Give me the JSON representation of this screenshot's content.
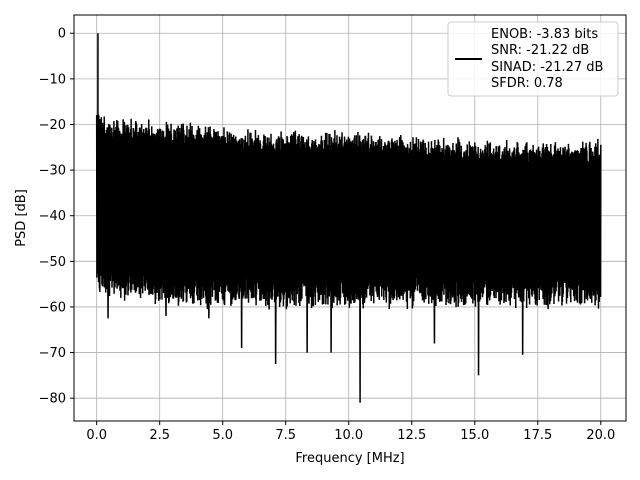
{
  "chart_data": {
    "type": "line",
    "title": "",
    "xlabel": "Frequency [MHz]",
    "ylabel": "PSD [dB]",
    "xlim": [
      -0.9,
      21.0
    ],
    "ylim": [
      -85,
      4
    ],
    "x_ticks": [
      0.0,
      2.5,
      5.0,
      7.5,
      10.0,
      12.5,
      15.0,
      17.5,
      20.0
    ],
    "x_tick_labels": [
      "0.0",
      "2.5",
      "5.0",
      "7.5",
      "10.0",
      "12.5",
      "15.0",
      "17.5",
      "20.0"
    ],
    "y_ticks": [
      0,
      -10,
      -20,
      -30,
      -40,
      -50,
      -60,
      -70,
      -80
    ],
    "y_tick_labels": [
      "0",
      "−10",
      "−20",
      "−30",
      "−40",
      "−50",
      "−60",
      "−70",
      "−80"
    ],
    "grid": true,
    "legend_position": "top-right",
    "line_color": "#000000",
    "x_range": [
      0.0,
      20.0
    ],
    "series": [
      {
        "legend_lines": [
          "ENOB: -3.83 bits",
          "SNR: -21.22 dB",
          "SINAD: -21.27 dB",
          "SFDR: 0.78"
        ],
        "peak": {
          "x": 0.05,
          "y": 0.0
        },
        "upper_envelope": {
          "x": [
            0.0,
            0.5,
            2.5,
            5.0,
            7.5,
            10.0,
            12.5,
            15.0,
            17.5,
            20.0
          ],
          "y": [
            -15,
            -18,
            -19,
            -20,
            -21,
            -21,
            -22,
            -23,
            -23,
            -23
          ]
        },
        "lower_envelope": {
          "x": [
            0.0,
            2.5,
            5.0,
            7.5,
            10.0,
            12.5,
            15.0,
            17.5,
            20.0
          ],
          "y": [
            -55,
            -57,
            -58,
            -58,
            -58,
            -58,
            -58,
            -58,
            -58
          ]
        },
        "dips": [
          {
            "x": 0.45,
            "y": -62.5
          },
          {
            "x": 2.75,
            "y": -62
          },
          {
            "x": 4.45,
            "y": -62.5
          },
          {
            "x": 5.75,
            "y": -69
          },
          {
            "x": 7.1,
            "y": -72.5
          },
          {
            "x": 8.35,
            "y": -70
          },
          {
            "x": 9.3,
            "y": -70
          },
          {
            "x": 10.45,
            "y": -81
          },
          {
            "x": 13.4,
            "y": -68
          },
          {
            "x": 15.15,
            "y": -75
          },
          {
            "x": 16.9,
            "y": -70.5
          }
        ]
      }
    ]
  }
}
